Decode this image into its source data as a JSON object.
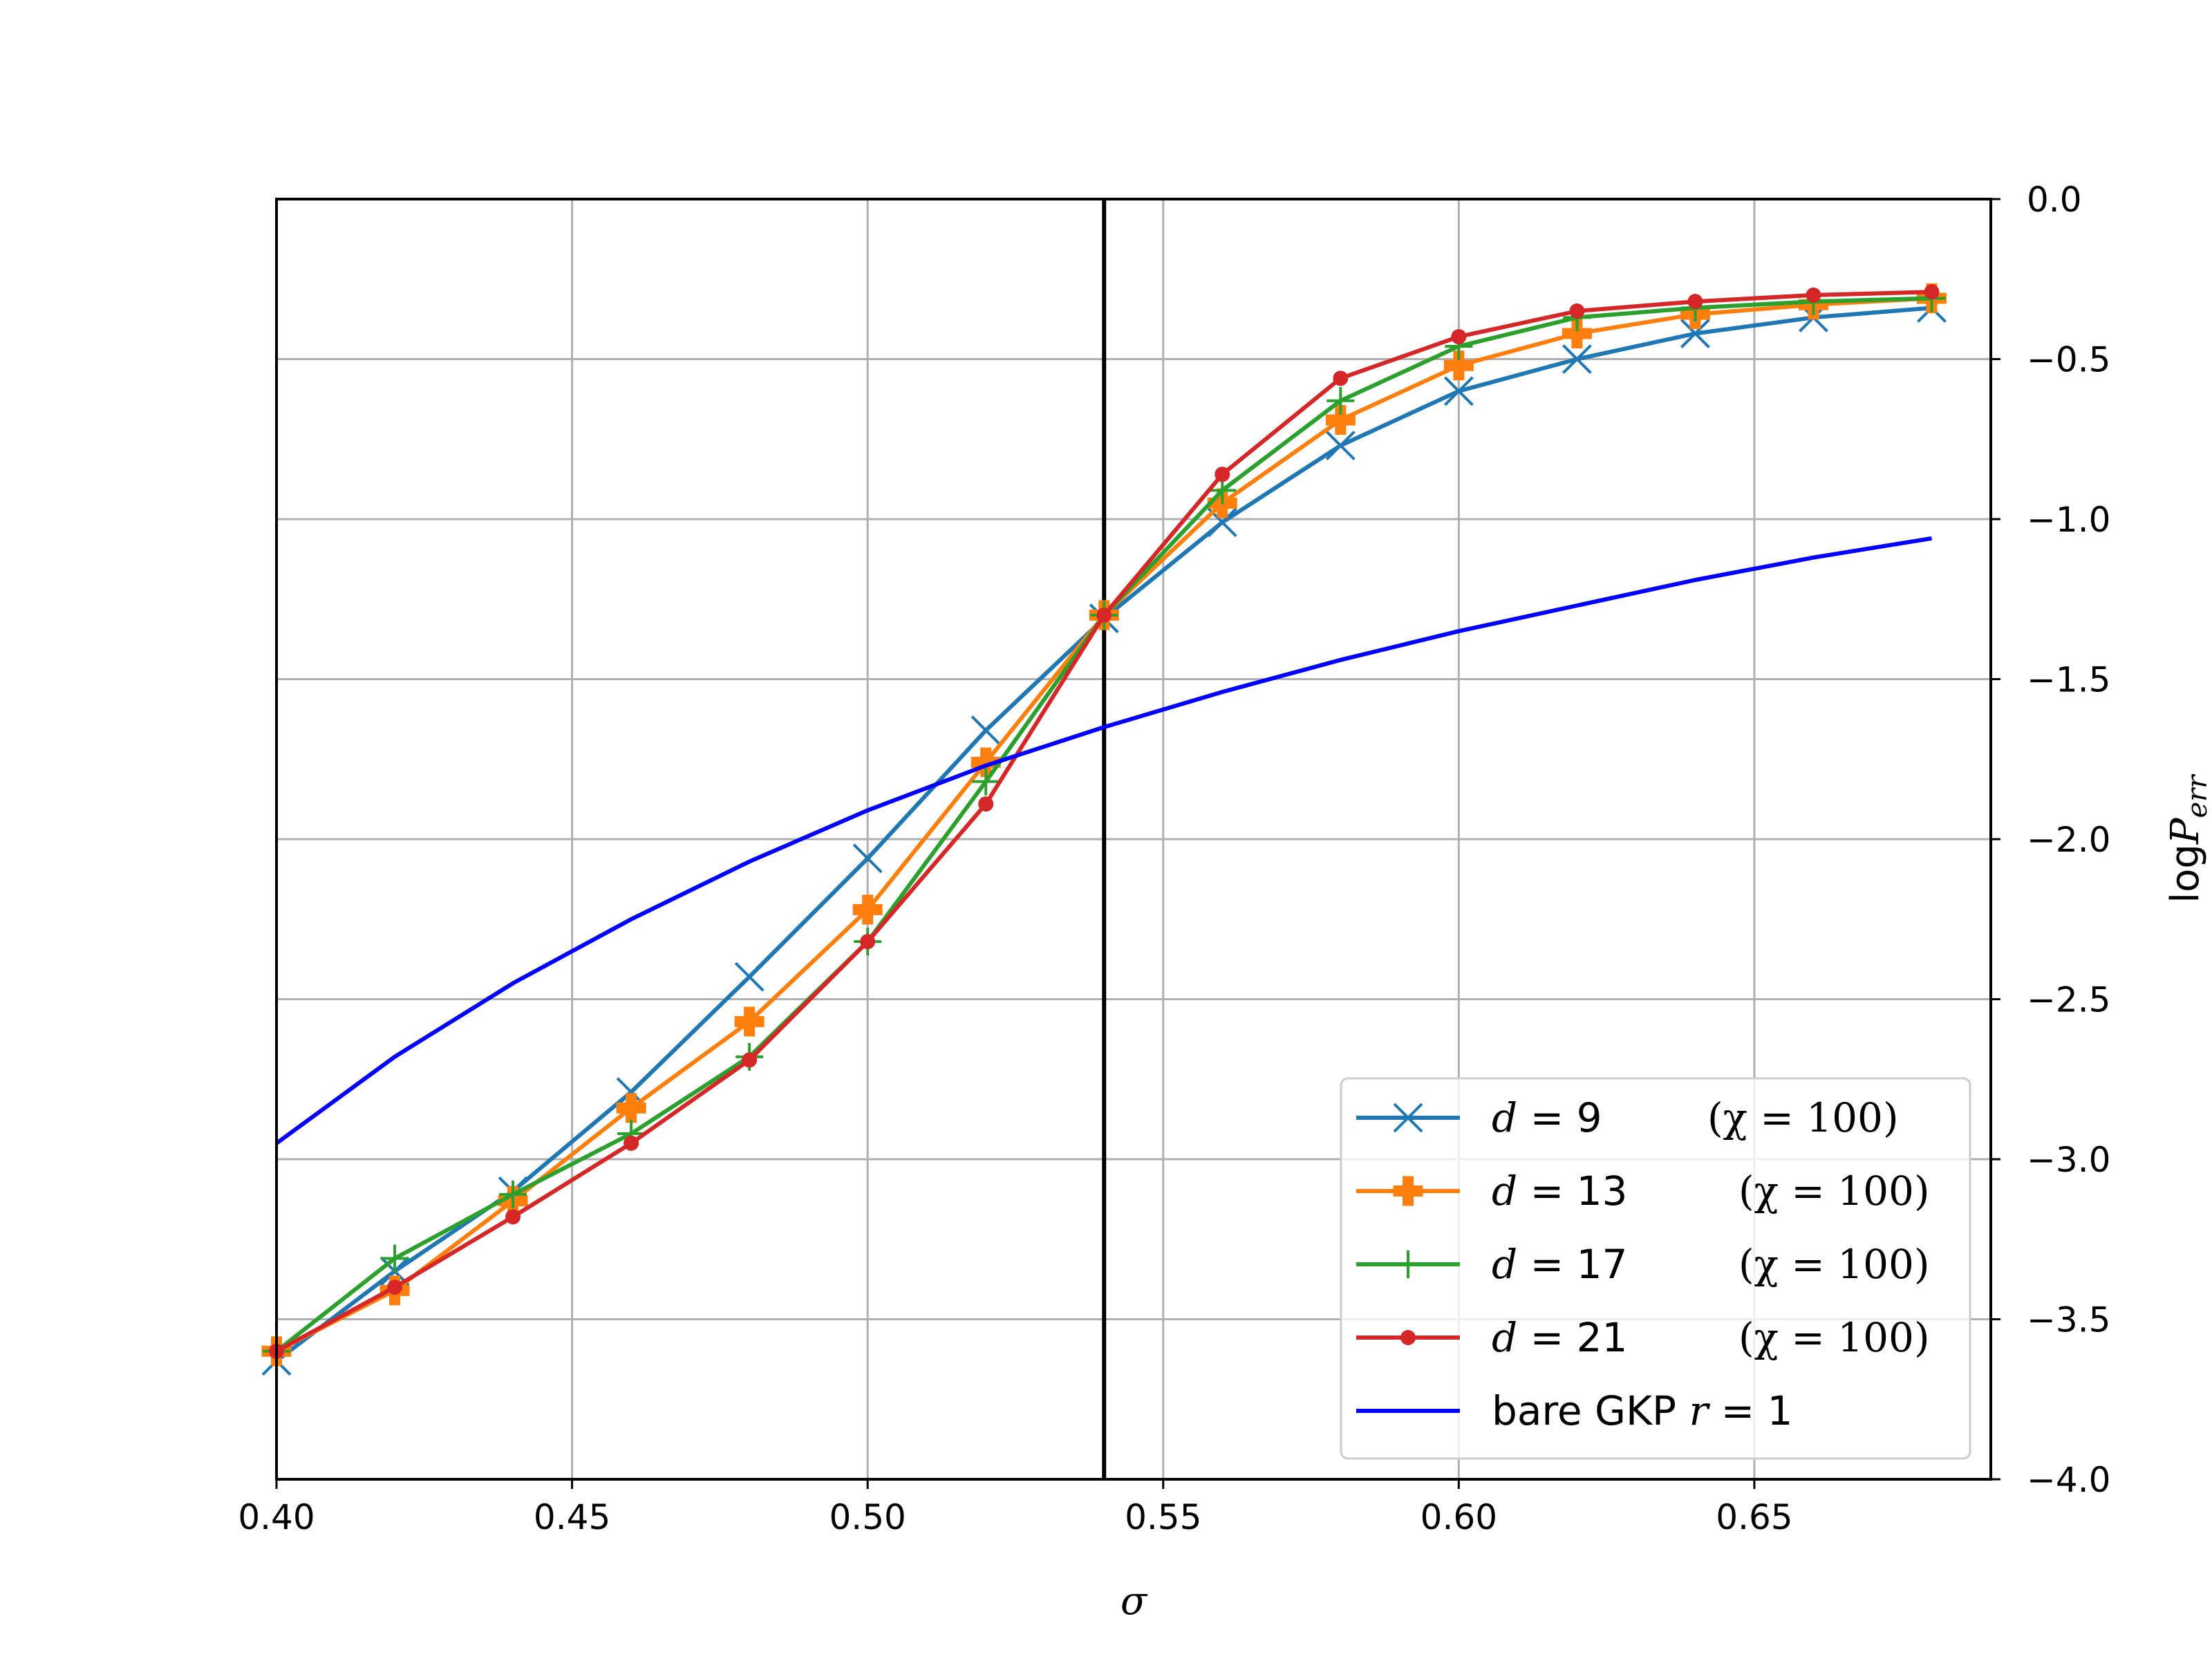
{
  "chart_data": {
    "type": "line",
    "xlabel": "σ",
    "ylabel": "logP_err",
    "xlim": [
      0.4,
      0.69
    ],
    "ylim": [
      -4.0,
      0.0
    ],
    "y_axis_side": "right",
    "grid": true,
    "vertical_line_x": 0.54,
    "xticks": [
      "0.40",
      "0.45",
      "0.50",
      "0.55",
      "0.60",
      "0.65"
    ],
    "yticks": [
      "0.0",
      "−0.5",
      "−1.0",
      "−1.5",
      "−2.0",
      "−2.5",
      "−3.0",
      "−3.5",
      "−4.0"
    ],
    "legend_position": "lower-right",
    "x": [
      0.4,
      0.42,
      0.44,
      0.46,
      0.48,
      0.5,
      0.52,
      0.54,
      0.56,
      0.58,
      0.6,
      0.62,
      0.64,
      0.66,
      0.68
    ],
    "series": [
      {
        "name": "d = 9",
        "name_var": "d",
        "name_rest": " = 9",
        "note": "(χ = 100)",
        "color": "#1f77b4",
        "marker": "x",
        "values": [
          -3.63,
          -3.35,
          -3.1,
          -2.79,
          -2.43,
          -2.06,
          -1.66,
          -1.31,
          -1.01,
          -0.77,
          -0.6,
          -0.5,
          -0.42,
          -0.37,
          -0.34
        ]
      },
      {
        "name": "d = 13",
        "name_var": "d",
        "name_rest": " = 13",
        "note": "(χ = 100)",
        "color": "#ff7f0e",
        "marker": "P",
        "values": [
          -3.6,
          -3.41,
          -3.13,
          -2.84,
          -2.57,
          -2.22,
          -1.76,
          -1.3,
          -0.95,
          -0.69,
          -0.52,
          -0.42,
          -0.36,
          -0.33,
          -0.31
        ]
      },
      {
        "name": "d = 17",
        "name_var": "d",
        "name_rest": " = 17",
        "note": "(χ = 100)",
        "color": "#2ca02c",
        "marker": "+",
        "values": [
          -3.6,
          -3.31,
          -3.11,
          -2.92,
          -2.68,
          -2.32,
          -1.82,
          -1.3,
          -0.91,
          -0.63,
          -0.46,
          -0.37,
          -0.34,
          -0.32,
          -0.31
        ]
      },
      {
        "name": "d = 21",
        "name_var": "d",
        "name_rest": " = 21",
        "note": "(χ = 100)",
        "color": "#d62728",
        "marker": "o",
        "values": [
          -3.6,
          -3.4,
          -3.18,
          -2.95,
          -2.69,
          -2.32,
          -1.89,
          -1.3,
          -0.86,
          -0.56,
          -0.43,
          -0.35,
          -0.32,
          -0.3,
          -0.29
        ]
      },
      {
        "name": "bare GKP r = 1",
        "name_text": "bare GKP ",
        "name_var": "r",
        "name_rest": " = 1",
        "note": "",
        "color": "#0000ff",
        "marker": "none",
        "values": [
          -2.95,
          -2.68,
          -2.45,
          -2.25,
          -2.07,
          -1.91,
          -1.77,
          -1.65,
          -1.54,
          -1.44,
          -1.35,
          -1.27,
          -1.19,
          -1.12,
          -1.06
        ]
      }
    ]
  }
}
